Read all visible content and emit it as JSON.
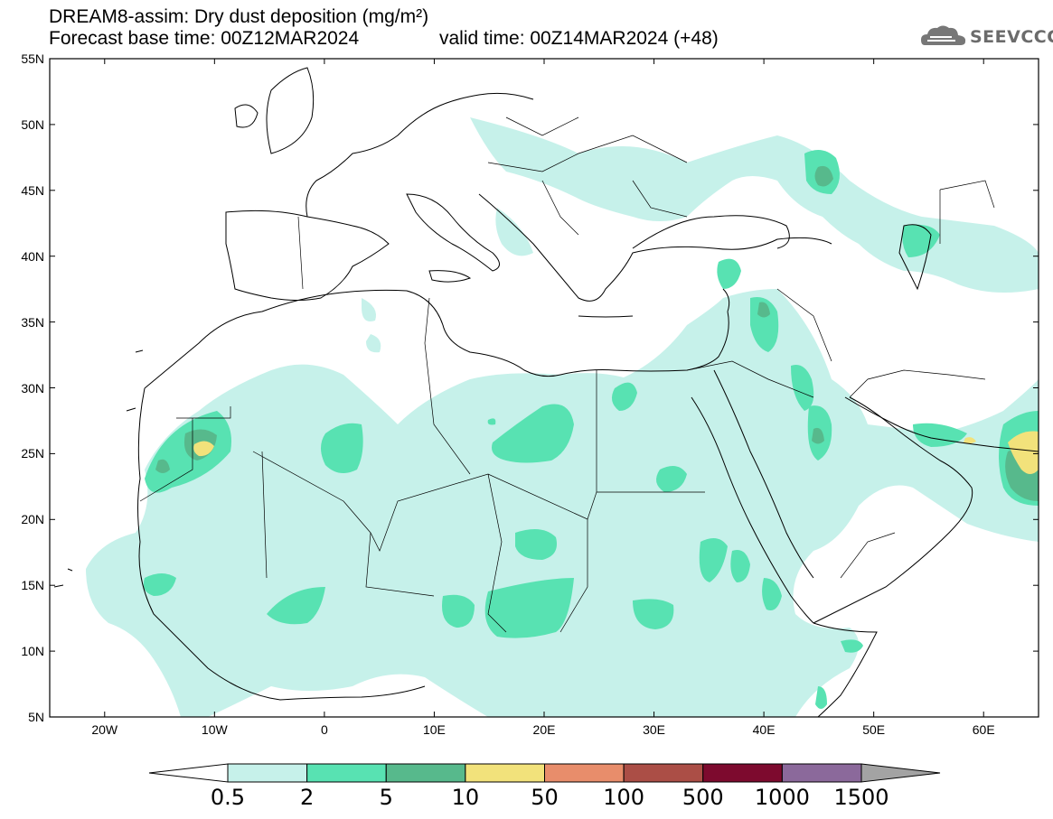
{
  "header": {
    "title_line1": "DREAM8-assim: Dry dust deposition (mg/m²)",
    "title_line2": "Forecast base time: 00Z12MAR2024",
    "valid_time": "valid time: 00Z14MAR2024 (+48)",
    "logo_text": "SEEVCCC",
    "logo_icon": "cloud-icon"
  },
  "map": {
    "projection": "lat-lon",
    "lon_range": [
      -25,
      65
    ],
    "lat_range": [
      5,
      55
    ],
    "lat_ticks": [
      "55N",
      "50N",
      "45N",
      "40N",
      "35N",
      "30N",
      "25N",
      "20N",
      "15N",
      "10N",
      "5N"
    ],
    "lon_ticks": [
      "20W",
      "10W",
      "0",
      "10E",
      "20E",
      "30E",
      "40E",
      "50E",
      "60E"
    ],
    "field": "dry dust deposition"
  },
  "colorbar": {
    "labels": [
      "0.5",
      "2",
      "5",
      "10",
      "50",
      "100",
      "500",
      "1000",
      "1500"
    ],
    "colors": [
      "#c6f1ea",
      "#58e2b2",
      "#57b98c",
      "#f2e27b",
      "#e88d6b",
      "#ab4e46",
      "#7d0a2e",
      "#8b699b"
    ],
    "under_color": "#ffffff",
    "over_color": "#a3a3a3",
    "units": "mg/m²"
  }
}
